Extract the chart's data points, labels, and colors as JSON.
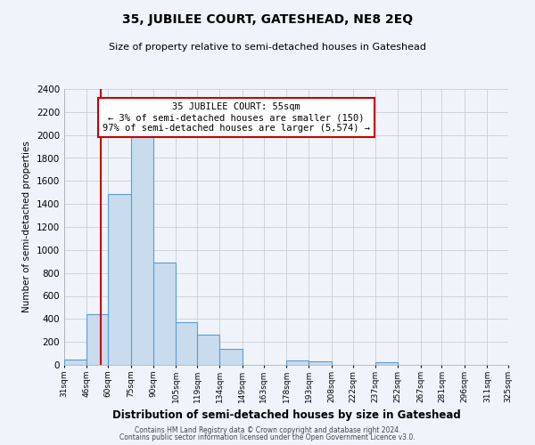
{
  "title": "35, JUBILEE COURT, GATESHEAD, NE8 2EQ",
  "subtitle": "Size of property relative to semi-detached houses in Gateshead",
  "xlabel": "Distribution of semi-detached houses by size in Gateshead",
  "ylabel": "Number of semi-detached properties",
  "bar_edges": [
    31,
    46,
    60,
    75,
    90,
    105,
    119,
    134,
    149,
    163,
    178,
    193,
    208,
    222,
    237,
    252,
    267,
    281,
    296,
    311,
    325
  ],
  "bar_heights": [
    50,
    440,
    1490,
    2000,
    890,
    375,
    260,
    140,
    0,
    0,
    40,
    30,
    0,
    0,
    20,
    0,
    0,
    0,
    0,
    0
  ],
  "bar_color": "#c9dced",
  "bar_edge_color": "#5b9bd5",
  "reference_line_x": 55,
  "reference_line_color": "#cc0000",
  "annotation_title": "35 JUBILEE COURT: 55sqm",
  "annotation_line1": "← 3% of semi-detached houses are smaller (150)",
  "annotation_line2": "97% of semi-detached houses are larger (5,574) →",
  "annotation_box_color": "#ffffff",
  "annotation_box_edgecolor": "#cc0000",
  "tick_labels": [
    "31sqm",
    "46sqm",
    "60sqm",
    "75sqm",
    "90sqm",
    "105sqm",
    "119sqm",
    "134sqm",
    "149sqm",
    "163sqm",
    "178sqm",
    "193sqm",
    "208sqm",
    "222sqm",
    "237sqm",
    "252sqm",
    "267sqm",
    "281sqm",
    "296sqm",
    "311sqm",
    "325sqm"
  ],
  "ylim": [
    0,
    2400
  ],
  "yticks": [
    0,
    200,
    400,
    600,
    800,
    1000,
    1200,
    1400,
    1600,
    1800,
    2000,
    2200,
    2400
  ],
  "footer1": "Contains HM Land Registry data © Crown copyright and database right 2024.",
  "footer2": "Contains public sector information licensed under the Open Government Licence v3.0.",
  "bg_color": "#f0f4fa",
  "plot_bg_color": "#f0f4fa"
}
